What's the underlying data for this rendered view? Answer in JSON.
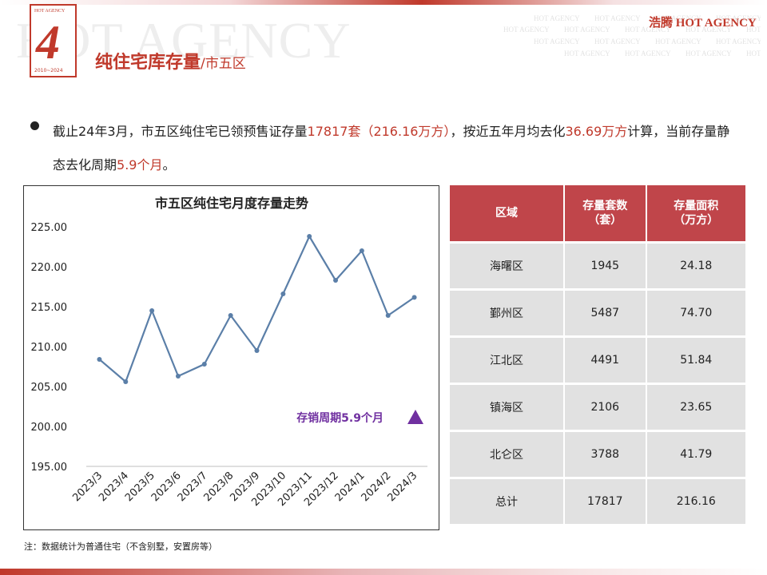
{
  "header": {
    "watermark": "HOT AGENCY",
    "logo": {
      "number": "4",
      "top_text": "HOT AGENCY",
      "years": "2010~2024"
    },
    "title": "纯住宅库存量",
    "title_suffix": "/市五区",
    "brand": "浩腾 HOT AGENCY"
  },
  "summary": {
    "p1": "截止24年3月，市五区纯住宅已领预售证存量",
    "stock_units": "17817套（216.16万方）",
    "p2": "，按近五年月均去化",
    "avg_absorption": "36.69万方",
    "p3": "计算，当前存量静态去化周期",
    "cycle": "5.9个月",
    "p4": "。"
  },
  "chart_data": {
    "type": "line",
    "title": "市五区纯住宅月度存量走势",
    "categories": [
      "2023/3",
      "2023/4",
      "2023/5",
      "2023/6",
      "2023/7",
      "2023/8",
      "2023/9",
      "2023/10",
      "2023/11",
      "2023/12",
      "2024/1",
      "2024/2",
      "2024/3"
    ],
    "values": [
      208.4,
      205.6,
      214.5,
      206.3,
      207.8,
      213.9,
      209.5,
      216.6,
      223.8,
      218.3,
      222.0,
      213.9,
      216.16
    ],
    "ylim": [
      195,
      225
    ],
    "yticks": [
      "195.00",
      "200.00",
      "205.00",
      "210.00",
      "215.00",
      "220.00",
      "225.00"
    ],
    "line_color": "#5b7fa8",
    "annotation": "存销周期5.9个月",
    "annotation_color": "#7030a0",
    "grid": false,
    "legend": "none"
  },
  "table": {
    "headers": [
      "区域",
      "存量套数\n（套）",
      "存量面积\n（万方）"
    ],
    "rows": [
      [
        "海曙区",
        "1945",
        "24.18"
      ],
      [
        "鄞州区",
        "5487",
        "74.70"
      ],
      [
        "江北区",
        "4491",
        "51.84"
      ],
      [
        "镇海区",
        "2106",
        "23.65"
      ],
      [
        "北仑区",
        "3788",
        "41.79"
      ],
      [
        "总计",
        "17817",
        "216.16"
      ]
    ]
  },
  "footnote": "注：数据统计为普通住宅（不含别墅，安置房等）",
  "colors": {
    "accent": "#c0392b",
    "table_header": "#c0454a",
    "table_cell": "#e1e1e1"
  }
}
